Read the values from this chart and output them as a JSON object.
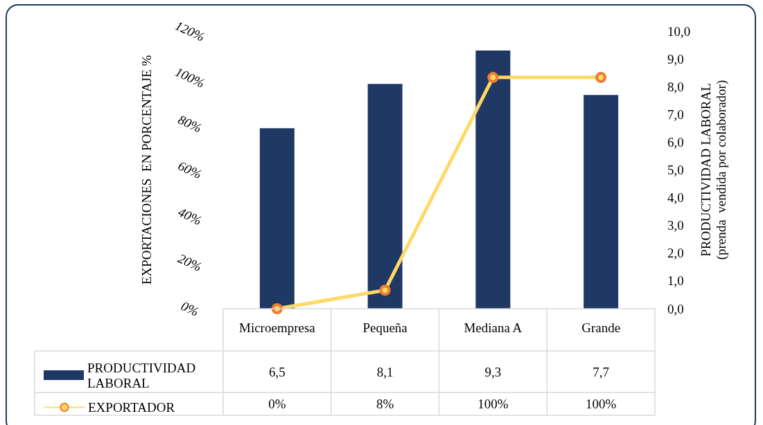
{
  "chart_data": {
    "type": "bar",
    "ylabel": "EXPORTACIONES  EN PORCENTAJE %",
    "y2label": "PRODUCTIVIDAD LABORAL\n(prenda  vendida por colaborador)",
    "categories": [
      "Microempresa",
      "Pequeña",
      "Mediana A",
      "Grande"
    ],
    "series": [
      {
        "name": "PRODUCTIVIDAD LABORAL",
        "axis": "y2",
        "color": "#203864",
        "values": [
          6.5,
          8.1,
          9.3,
          7.7
        ],
        "value_labels": [
          "6,5",
          "8,1",
          "9,3",
          "7,7"
        ]
      },
      {
        "name": "EXPORTADOR",
        "type": "line",
        "axis": "y",
        "color": "#ffd966",
        "values": [
          0,
          8,
          100,
          100
        ],
        "value_labels": [
          "0%",
          "8%",
          "100%",
          "100%"
        ]
      }
    ],
    "ylim": [
      0,
      120
    ],
    "yticks": [
      {
        "value": 0,
        "label": "0%"
      },
      {
        "value": 20,
        "label": "20%"
      },
      {
        "value": 40,
        "label": "40%"
      },
      {
        "value": 60,
        "label": "60%"
      },
      {
        "value": 80,
        "label": "80%"
      },
      {
        "value": 100,
        "label": "100%"
      },
      {
        "value": 120,
        "label": "120%"
      }
    ],
    "y2lim": [
      0,
      10
    ],
    "y2ticks": [
      {
        "value": 0,
        "label": "0,0"
      },
      {
        "value": 1,
        "label": "1,0"
      },
      {
        "value": 2,
        "label": "2,0"
      },
      {
        "value": 3,
        "label": "3,0"
      },
      {
        "value": 4,
        "label": "4,0"
      },
      {
        "value": 5,
        "label": "5,0"
      },
      {
        "value": 6,
        "label": "6,0"
      },
      {
        "value": 7,
        "label": "7,0"
      },
      {
        "value": 8,
        "label": "8,0"
      },
      {
        "value": 9,
        "label": "9,0"
      },
      {
        "value": 10,
        "label": "10,0"
      }
    ],
    "marker": "circle",
    "legend": "bottom",
    "grid": false
  }
}
